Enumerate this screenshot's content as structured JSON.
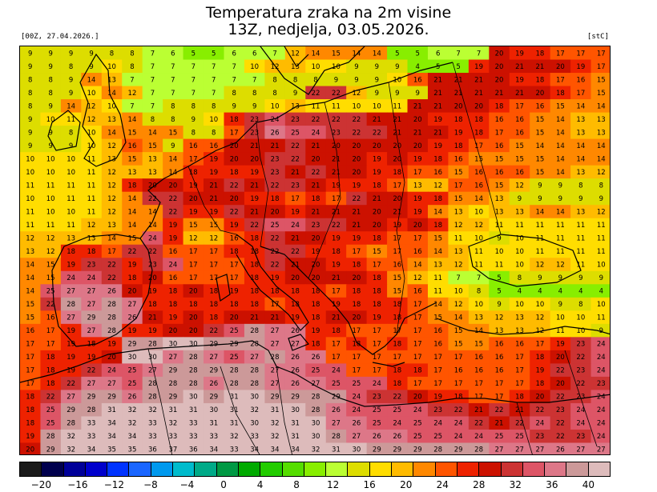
{
  "header": {
    "title_line1": "Temperatura zraka na 2m visine",
    "title_line2": "13Z, nedjelja, 03.05.2026.",
    "run_label": "[00Z, 27.04.2026.]",
    "unit_label": "[stC]"
  },
  "legend": {
    "colors": [
      "#1a1a1a",
      "#00004d",
      "#000099",
      "#0000cc",
      "#0033ff",
      "#1a66ff",
      "#0099ee",
      "#00bbcc",
      "#00aa88",
      "#009944",
      "#00aa00",
      "#22cc00",
      "#55dd00",
      "#88ee00",
      "#bbff33",
      "#dddd00",
      "#ffdd00",
      "#ffbb00",
      "#ff8800",
      "#ff5500",
      "#ee2200",
      "#cc1100",
      "#cc3333",
      "#dd5566",
      "#dd7788",
      "#cc9999",
      "#ddbbbb"
    ],
    "tick_labels": [
      "−20",
      "−16",
      "−12",
      "−8",
      "−4",
      "0",
      "4",
      "8",
      "12",
      "16",
      "20",
      "24",
      "28",
      "32",
      "36",
      "40"
    ]
  },
  "map": {
    "columns": 29,
    "rows": [
      "9 9 9 9 8 8 7 6 5 5 6 6 7 12 14 15 14 14 5 5 6 7 7 20 19 18 17 17 17",
      "9 9 8 9 10 8 7 7 7 7 7 10 12 13 10 10 9 9 9 4 5 5 19 20 21 21 20 19 17",
      "8 8 9 14 13 7 7 7 7 7 7 7 8 8 8 9 9 9 10 16 21 21 21 20 19 18 17 16 15",
      "8 8 9 10 14 12 7 7 7 7 8 8 8 9 22 22 12 9 9 9 21 21 21 21 21 20 18 17 15",
      "8 9 14 12 10 7 7 8 8 8 9 9 10 13 11 11 10 10 11 21 21 20 20 18 17 16 15 14 14",
      "9 10 11 12 13 14 8 8 9 10 18 23 24 23 22 22 22 21 21 20 19 18 18 16 16 15 14 13 13",
      "9 9 8 10 14 15 14 15 8 8 17 23 26 25 24 23 22 22 21 21 21 19 18 17 16 15 14 13 13",
      "9 9 9 10 12 16 15 9 16 16 20 21 21 22 21 20 20 20 20 20 19 18 17 16 15 14 14 14 14",
      "10 10 10 11 13 15 13 14 17 19 20 20 23 22 20 21 20 19 20 19 18 16 15 15 15 15 14 14 14",
      "10 10 10 11 12 13 13 14 18 19 18 19 23 21 22 21 20 19 18 17 16 15 16 16 16 15 14 13 12",
      "11 11 11 11 12 18 20 20 19 21 22 21 22 23 21 19 19 18 17 13 12 17 16 15 12 9 9 8 8",
      "10 10 11 11 12 14 22 22 20 21 20 19 18 17 18 17 22 21 20 19 18 15 14 13 9 9 9 9 9",
      "11 10 10 11 12 14 14 22 19 19 22 21 20 19 21 21 21 20 21 19 14 13 10 13 13 14 14 13 12",
      "11 11 11 12 13 14 14 19 15 15 19 22 25 24 23 22 21 20 19 20 18 12 12 11 11 11 11 11 11",
      "12 12 13 13 14 15 24 19 12 12 16 18 22 21 20 19 19 18 17 17 15 11 10 9 10 11 11 11 11",
      "13 12 18 18 17 22 22 16 17 17 18 18 22 22 19 18 17 15 17 16 14 13 11 10 10 11 11 11 11",
      "14 15 19 23 22 19 23 24 17 17 17 18 22 21 20 19 18 17 16 14 13 12 11 11 10 12 12 11 10",
      "14 15 24 24 22 18 20 16 17 17 17 18 19 20 20 21 20 18 15 12 11 7 7 5 8 9 9 9 9",
      "14 25 27 27 26 20 19 18 20 18 19 18 18 18 18 17 18 18 15 16 11 10 8 5 4 4 4 4 4",
      "15 22 28 27 28 27 18 18 18 18 18 18 17 18 18 19 18 18 18 17 14 12 10 9 10 10 9 8 10",
      "15 16 27 29 28 26 21 19 20 18 20 21 21 19 18 21 20 19 18 17 15 14 13 12 13 12 10 10 11",
      "16 17 19 27 28 19 19 20 20 22 25 28 27 26 19 18 17 17 17 17 16 15 14 13 13 12 11 10 9",
      "17 17 19 18 19 29 28 30 30 29 29 28 27 27 18 17 18 17 18 17 16 15 15 16 16 17 19 23 24",
      "17 18 19 19 20 30 30 27 28 27 25 27 28 26 26 17 17 17 17 17 17 17 16 16 17 18 20 22 24",
      "17 18 19 22 24 25 27 29 28 29 28 28 27 26 25 24 17 17 18 18 17 16 16 16 17 19 22 23 24",
      "17 18 22 27 27 25 28 28 28 26 28 28 27 26 27 25 25 24 18 17 17 17 17 17 17 18 20 22 23",
      "18 22 27 29 29 26 28 29 30 29 31 30 29 29 28 29 24 23 22 20 19 18 17 17 18 20 22 23 24",
      "18 25 29 28 31 32 32 31 31 30 31 32 31 30 28 26 24 25 25 24 23 22 21 22 21 22 23 24 24",
      "18 25 28 33 34 32 33 32 33 31 31 30 32 31 30 27 26 25 24 25 24 24 22 21 22 24 22 24 24",
      "19 28 32 33 34 34 33 33 33 33 32 33 32 31 30 28 27 26 26 25 25 24 24 25 25 23 22 23 24",
      "20 29 32 34 35 35 36 37 36 34 33 34 34 34 32 31 30 29 29 29 28 29 28 27 27 27 26 27 27"
    ]
  }
}
